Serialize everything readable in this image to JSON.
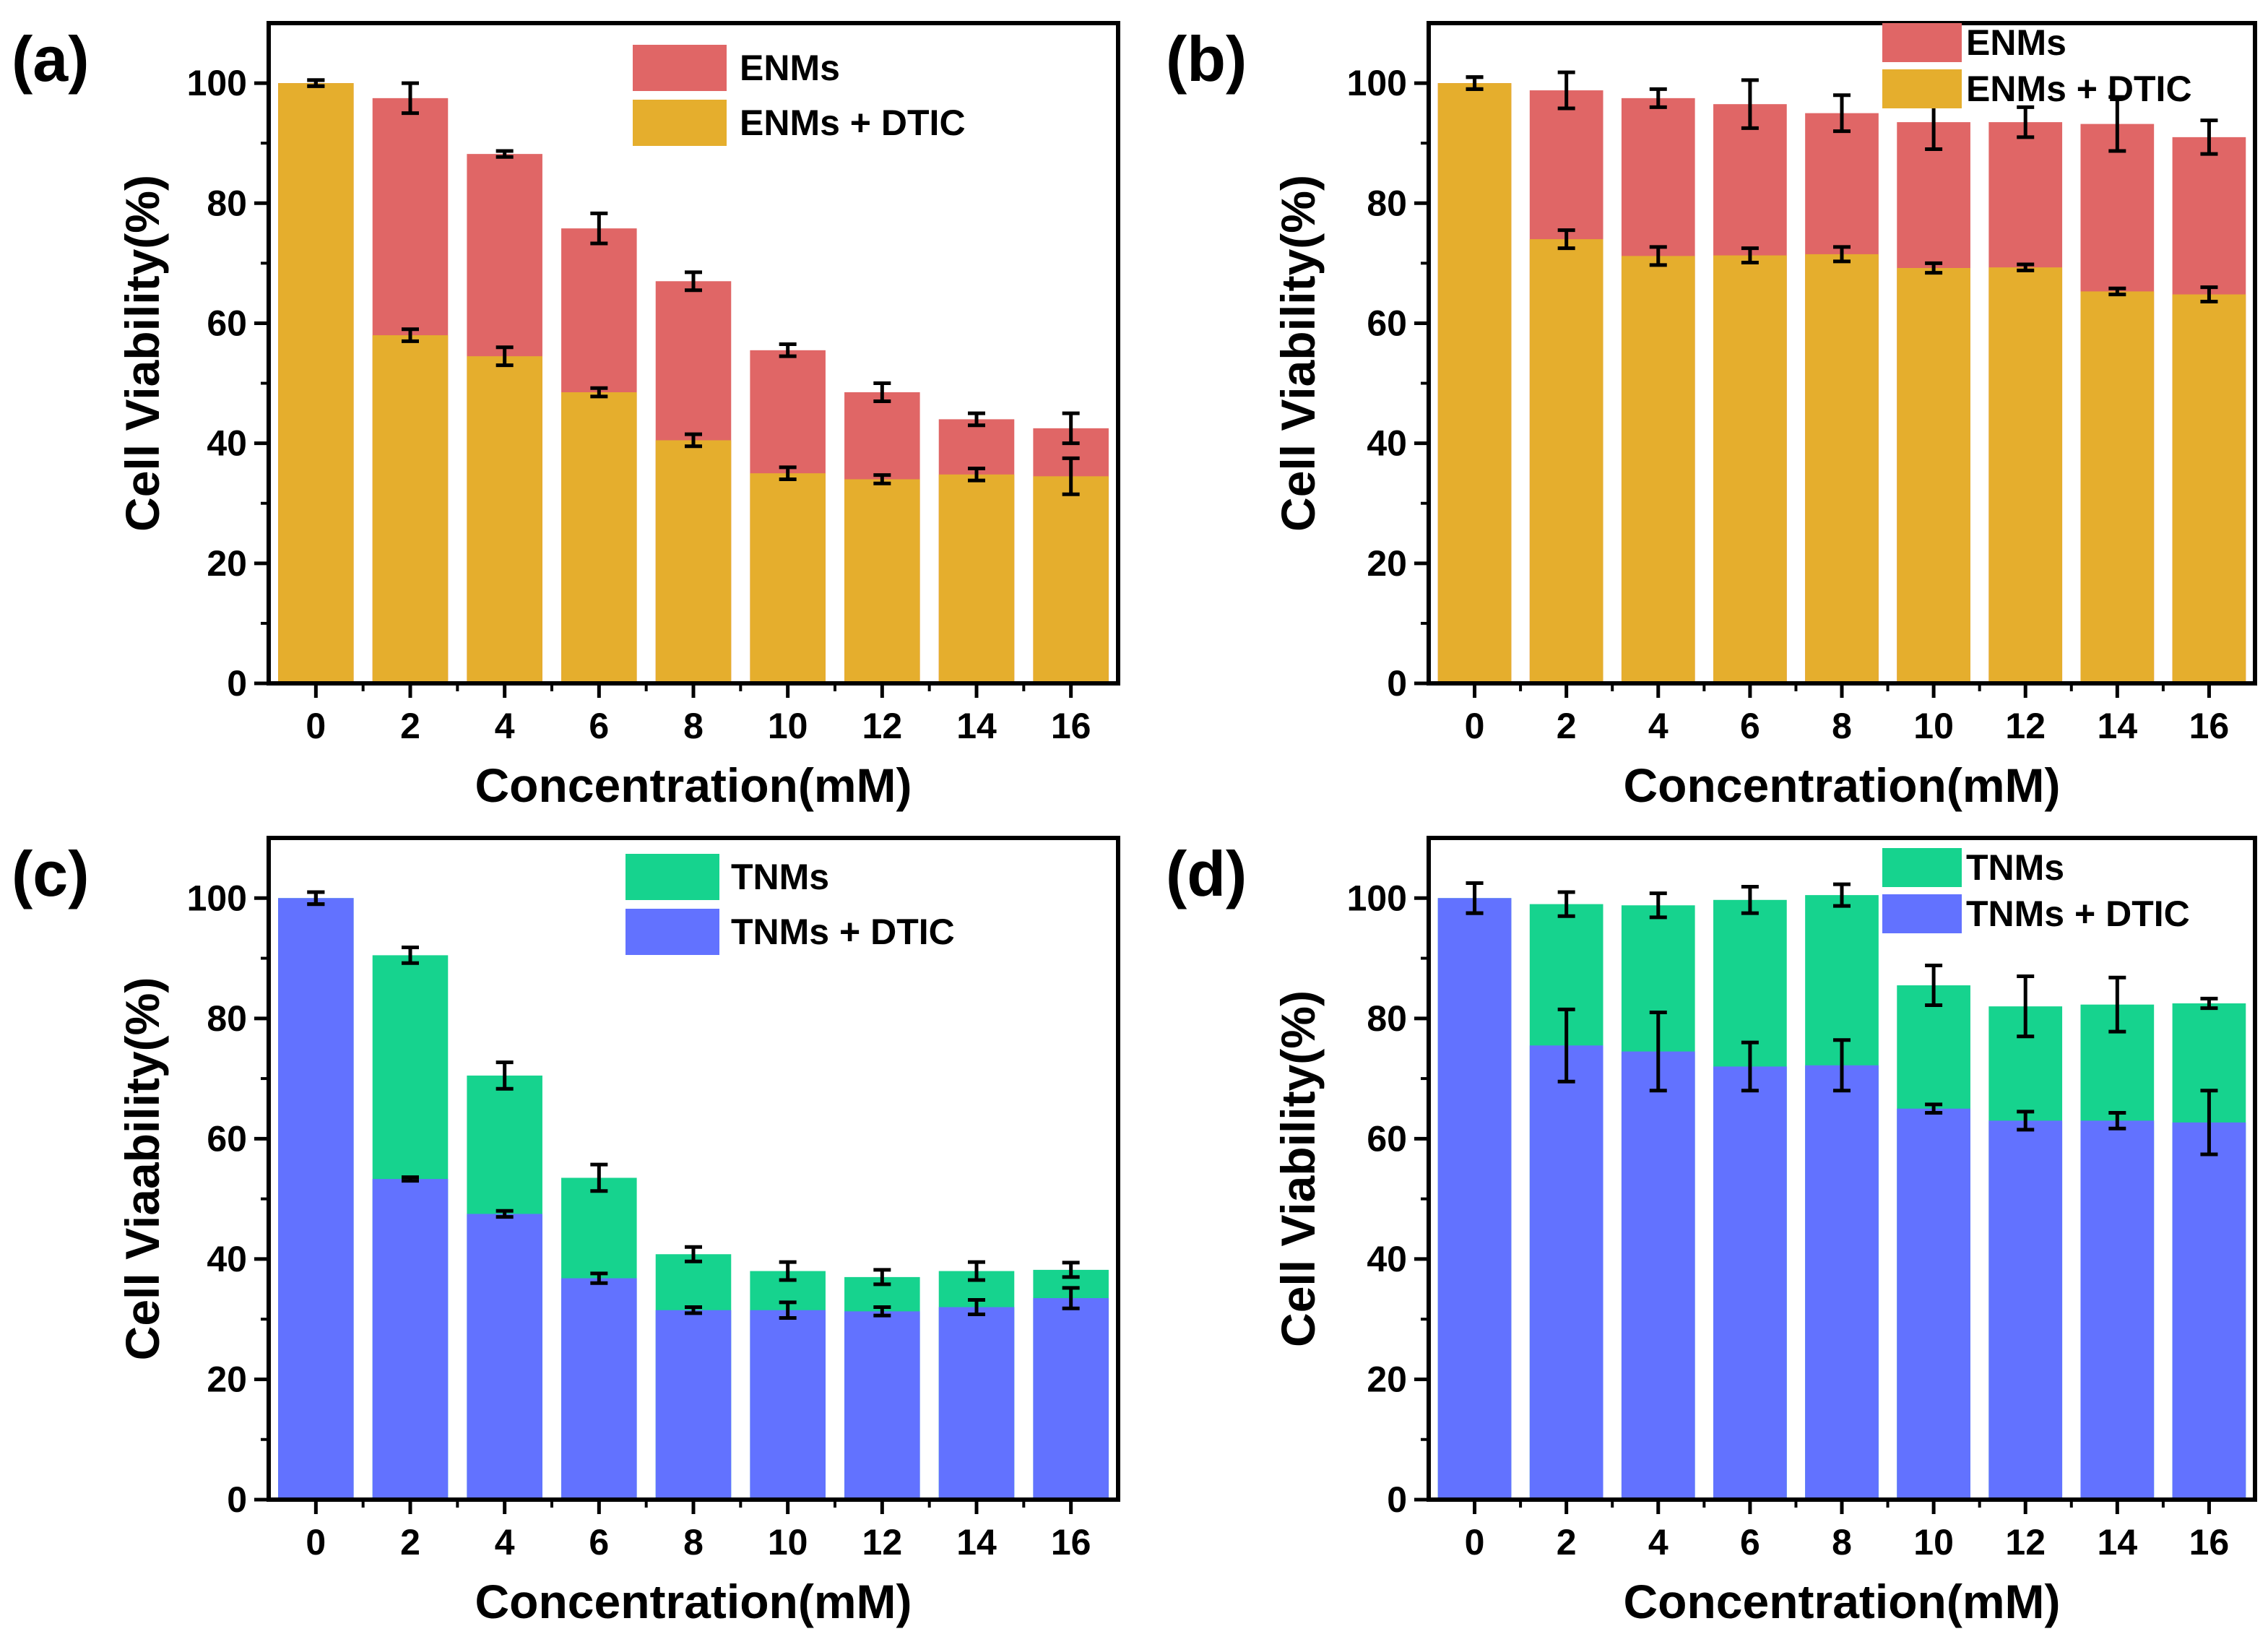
{
  "figure": {
    "colors": {
      "ENMs": "#E06666",
      "ENMs + DTIC": "#E5AE2D",
      "TNMs": "#16D38E",
      "TNMs + DTIC": "#6272FF",
      "error_bar": "#000000",
      "axis": "#000000"
    }
  },
  "chart_data": [
    {
      "id": "a",
      "panel_label": "(a)",
      "type": "bar",
      "xlabel": "Concentration(mM)",
      "ylabel": "Cell Viability(%)",
      "ylim": [
        0,
        110
      ],
      "yticks": [
        0,
        20,
        40,
        60,
        80,
        100
      ],
      "categories": [
        "0",
        "2",
        "4",
        "6",
        "8",
        "10",
        "12",
        "14",
        "16"
      ],
      "legend_position": "top-right",
      "series": [
        {
          "name": "ENMs",
          "color": "#E06666",
          "values": [
            100,
            97.5,
            88.2,
            75.8,
            67,
            55.5,
            48.5,
            44,
            42.5
          ],
          "errors": [
            0.5,
            2.5,
            0.5,
            2.5,
            1.5,
            1,
            1.5,
            1,
            2.5
          ]
        },
        {
          "name": "ENMs + DTIC",
          "color": "#E5AE2D",
          "values": [
            100,
            58,
            54.5,
            48.5,
            40.5,
            35,
            34,
            34.8,
            34.5
          ],
          "errors": [
            0.5,
            1,
            1.5,
            0.7,
            1,
            1,
            0.7,
            1,
            3
          ]
        }
      ]
    },
    {
      "id": "b",
      "panel_label": "(b)",
      "type": "bar",
      "xlabel": "Concentration(mM)",
      "ylabel": "Cell Viability(%)",
      "ylim": [
        0,
        110
      ],
      "yticks": [
        0,
        20,
        40,
        60,
        80,
        100
      ],
      "categories": [
        "0",
        "2",
        "4",
        "6",
        "8",
        "10",
        "12",
        "14",
        "16"
      ],
      "legend_position": "top-right",
      "series": [
        {
          "name": "ENMs",
          "color": "#E06666",
          "values": [
            100,
            98.8,
            97.5,
            96.5,
            95,
            93.5,
            93.5,
            93.2,
            91
          ],
          "errors": [
            1,
            3,
            1.5,
            4,
            3,
            4.5,
            2.5,
            4.5,
            2.8
          ]
        },
        {
          "name": "ENMs + DTIC",
          "color": "#E5AE2D",
          "values": [
            100,
            74,
            71.2,
            71.3,
            71.5,
            69.2,
            69.3,
            65.3,
            64.8
          ],
          "errors": [
            1,
            1.5,
            1.5,
            1.2,
            1.2,
            0.8,
            0.5,
            0.5,
            1.2
          ]
        }
      ]
    },
    {
      "id": "c",
      "panel_label": "(c)",
      "type": "bar",
      "xlabel": "Concentration(mM)",
      "ylabel": "Cell Viaability(%)",
      "ylim": [
        0,
        110
      ],
      "yticks": [
        0,
        20,
        40,
        60,
        80,
        100
      ],
      "categories": [
        "0",
        "2",
        "4",
        "6",
        "8",
        "10",
        "12",
        "14",
        "16"
      ],
      "legend_position": "top-right",
      "series": [
        {
          "name": "TNMs",
          "color": "#16D38E",
          "values": [
            100,
            90.5,
            70.5,
            53.5,
            40.8,
            38,
            37,
            38,
            38.2
          ],
          "errors": [
            1,
            1.3,
            2.2,
            2.2,
            1.2,
            1.5,
            1.2,
            1.5,
            1.2
          ]
        },
        {
          "name": "TNMs + DTIC",
          "color": "#6272FF",
          "values": [
            100,
            53.3,
            47.5,
            36.8,
            31.5,
            31.5,
            31.3,
            32,
            33.5
          ],
          "errors": [
            1,
            0.3,
            0.5,
            0.8,
            0.5,
            1.3,
            0.7,
            1.2,
            1.7
          ]
        }
      ]
    },
    {
      "id": "d",
      "panel_label": "(d)",
      "type": "bar",
      "xlabel": "Concentration(mM)",
      "ylabel": "Cell Viability(%)",
      "ylim": [
        0,
        110
      ],
      "yticks": [
        0,
        20,
        40,
        60,
        80,
        100
      ],
      "categories": [
        "0",
        "2",
        "4",
        "6",
        "8",
        "10",
        "12",
        "14",
        "16"
      ],
      "legend_position": "top-right",
      "series": [
        {
          "name": "TNMs",
          "color": "#16D38E",
          "values": [
            100,
            99,
            98.8,
            99.7,
            100.5,
            85.5,
            82,
            82.3,
            82.5
          ],
          "errors": [
            2.5,
            2,
            2,
            2.2,
            1.8,
            3.3,
            5,
            4.5,
            0.8
          ]
        },
        {
          "name": "TNMs + DTIC",
          "color": "#6272FF",
          "values": [
            100,
            75.5,
            74.5,
            72,
            72.2,
            65,
            63,
            63,
            62.7
          ],
          "errors": [
            2.5,
            6,
            6.5,
            4,
            4.2,
            0.7,
            1.5,
            1.3,
            5.3
          ]
        }
      ]
    }
  ]
}
